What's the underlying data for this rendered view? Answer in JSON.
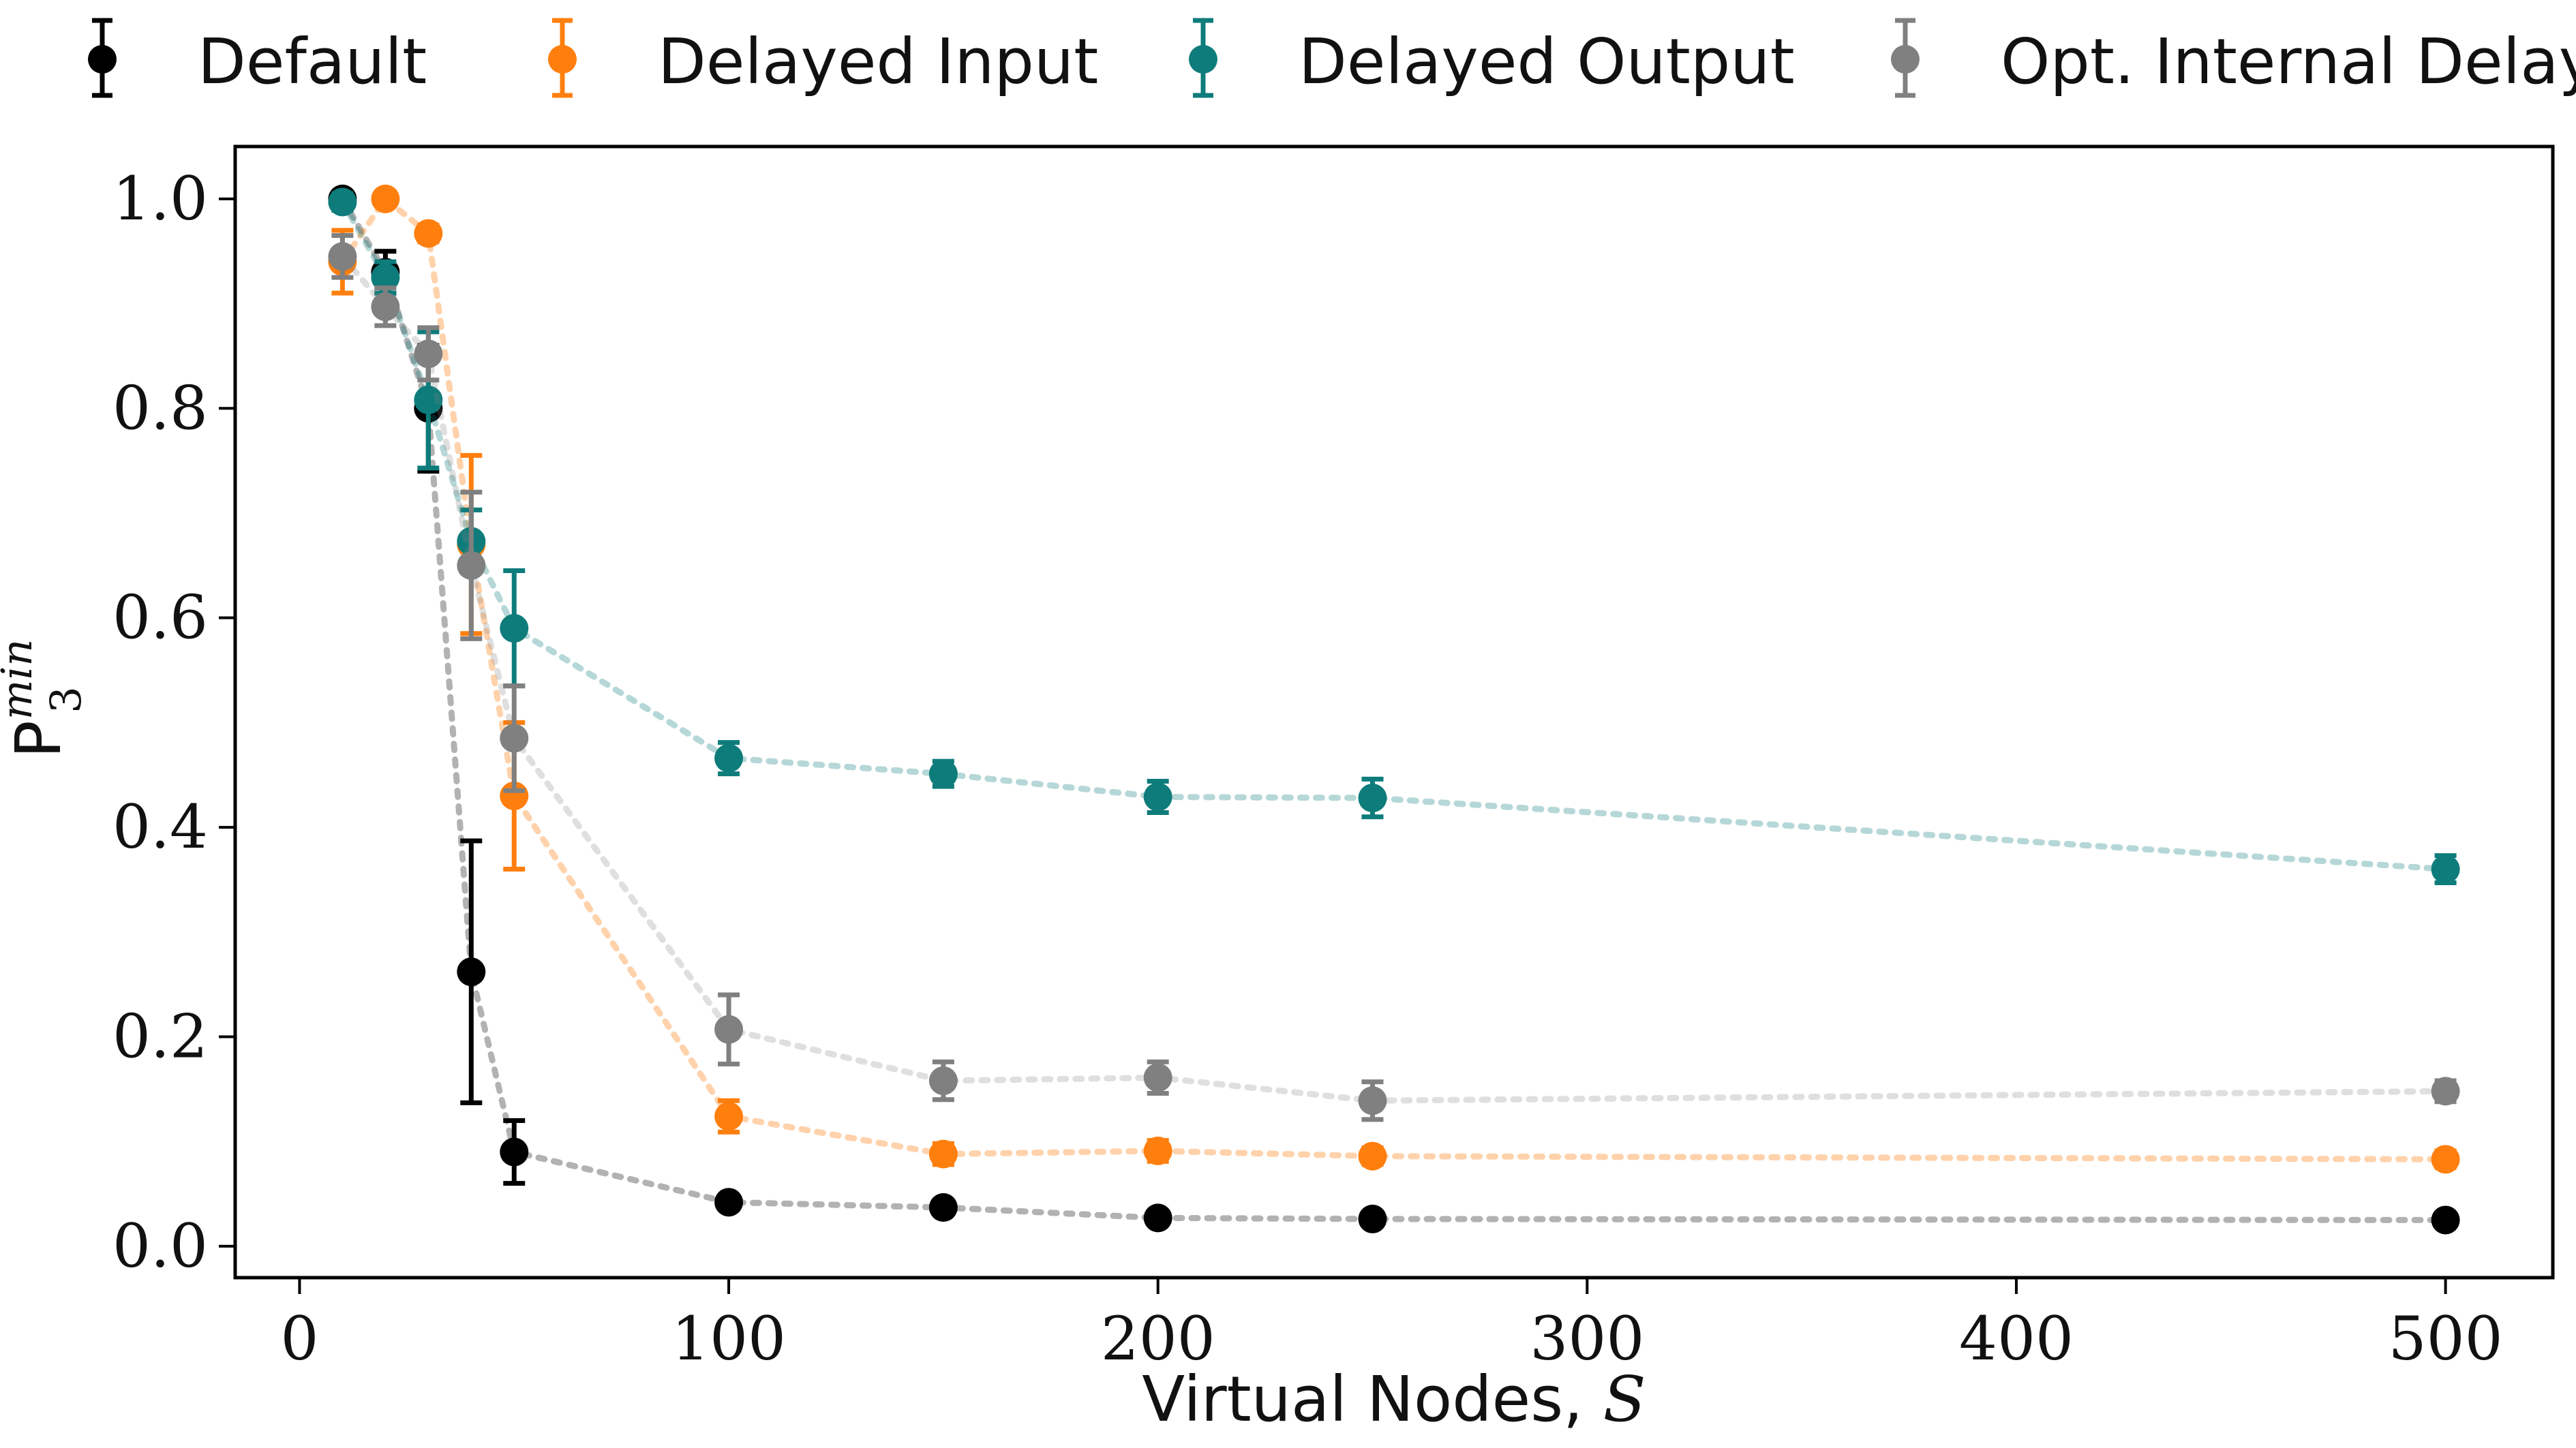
{
  "chart_data": {
    "type": "scatter",
    "title": "",
    "xlabel": "Virtual Nodes, ",
    "xlabel_var": "S",
    "ylabel_main": "P",
    "ylabel_sub": "3",
    "ylabel_sup": "min",
    "xlim": [
      -15,
      525
    ],
    "ylim": [
      -0.03,
      1.05
    ],
    "xticks": [
      0,
      100,
      200,
      300,
      400,
      500
    ],
    "xtick_labels": [
      "0",
      "100",
      "200",
      "300",
      "400",
      "500"
    ],
    "yticks": [
      0.0,
      0.2,
      0.4,
      0.6,
      0.8,
      1.0
    ],
    "ytick_labels": [
      "0.0",
      "0.2",
      "0.4",
      "0.6",
      "0.8",
      "1.0"
    ],
    "legend_position": "top, outside",
    "series": [
      {
        "name": "Default",
        "color": "#000000",
        "x": [
          10,
          20,
          30,
          40,
          50,
          100,
          150,
          200,
          250,
          500
        ],
        "y": [
          1.0,
          0.93,
          0.8,
          0.262,
          0.09,
          0.042,
          0.037,
          0.027,
          0.026,
          0.025
        ],
        "err": [
          0.005,
          0.02,
          0.06,
          0.125,
          0.03,
          0.006,
          0.005,
          0.004,
          0.004,
          0.003
        ]
      },
      {
        "name": "Delayed Input",
        "color": "#ff7f0e",
        "x": [
          10,
          20,
          30,
          40,
          50,
          100,
          150,
          200,
          250,
          500
        ],
        "y": [
          0.94,
          1.0,
          0.967,
          0.67,
          0.43,
          0.124,
          0.088,
          0.091,
          0.086,
          0.083
        ],
        "err": [
          0.03,
          0.005,
          0.008,
          0.085,
          0.07,
          0.015,
          0.01,
          0.01,
          0.008,
          0.008
        ]
      },
      {
        "name": "Delayed Output",
        "color": "#0e7c7b",
        "x": [
          10,
          20,
          30,
          40,
          50,
          100,
          150,
          200,
          250,
          500
        ],
        "y": [
          0.997,
          0.925,
          0.808,
          0.673,
          0.59,
          0.466,
          0.451,
          0.429,
          0.428,
          0.36
        ],
        "err": [
          0.008,
          0.015,
          0.065,
          0.03,
          0.055,
          0.015,
          0.012,
          0.015,
          0.018,
          0.013
        ]
      },
      {
        "name": "Opt. Internal Delay",
        "color": "#808080",
        "x": [
          10,
          20,
          30,
          40,
          50,
          100,
          150,
          200,
          250,
          500
        ],
        "y": [
          0.945,
          0.897,
          0.852,
          0.65,
          0.485,
          0.207,
          0.158,
          0.161,
          0.139,
          0.148
        ],
        "err": [
          0.02,
          0.018,
          0.025,
          0.07,
          0.05,
          0.033,
          0.018,
          0.015,
          0.018,
          0.01
        ]
      }
    ]
  }
}
